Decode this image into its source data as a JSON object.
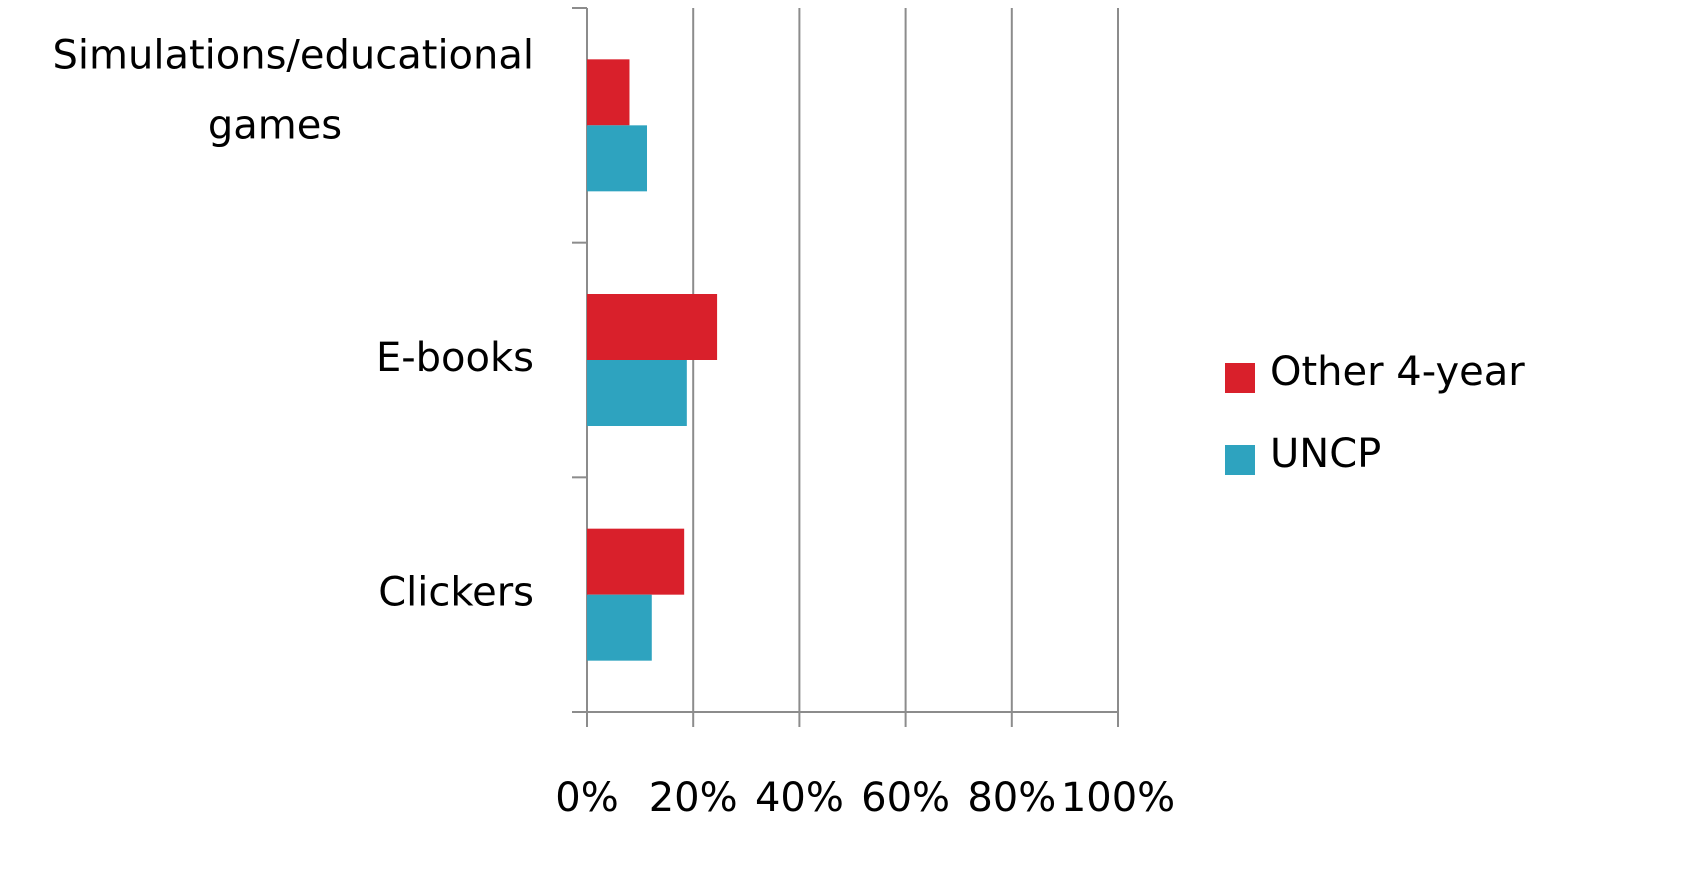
{
  "chart_data": {
    "type": "hbar",
    "categories": [
      "Simulations/educational games",
      "E-books",
      "Clickers"
    ],
    "series": [
      {
        "name": "Other 4-year",
        "color": "#d9202b",
        "values": [
          8,
          24.5,
          18.3
        ]
      },
      {
        "name": "UNCP",
        "color": "#2ea3bf",
        "values": [
          11.3,
          18.8,
          12.2
        ]
      }
    ],
    "xlim": [
      0,
      100
    ],
    "xticks": [
      {
        "value": 0,
        "label": "0%"
      },
      {
        "value": 20,
        "label": "20%"
      },
      {
        "value": 40,
        "label": "40%"
      },
      {
        "value": 60,
        "label": "60%"
      },
      {
        "value": 80,
        "label": "80%"
      },
      {
        "value": 100,
        "label": "100%"
      }
    ],
    "grid": true,
    "legend": "right"
  }
}
